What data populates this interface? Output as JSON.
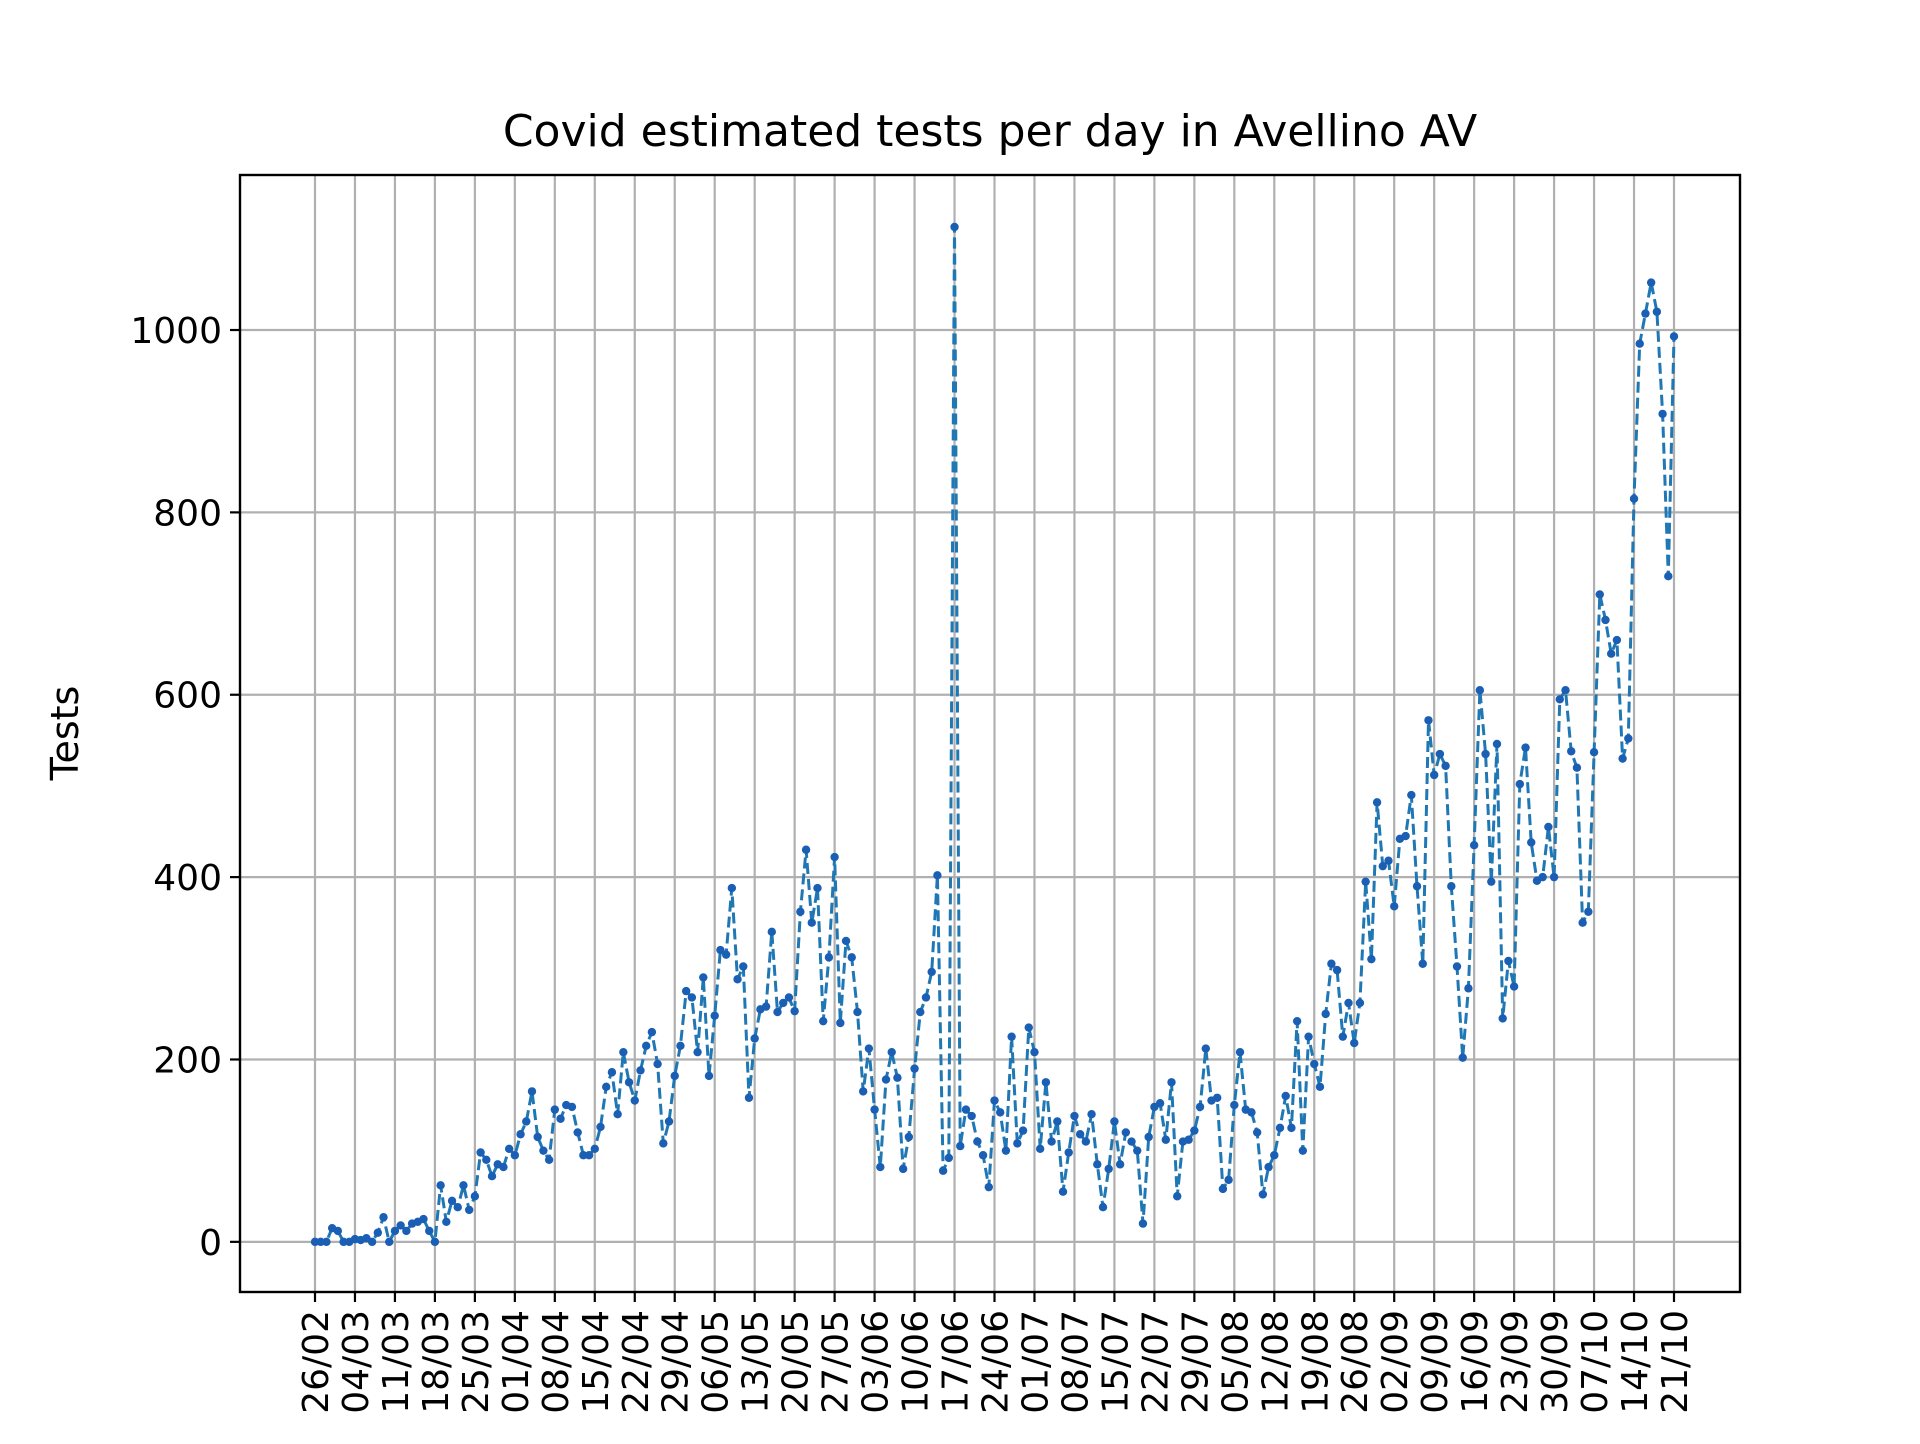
{
  "chart_data": {
    "type": "line",
    "title": "Covid estimated tests per day in Avellino AV",
    "xlabel": "",
    "ylabel": "Tests",
    "ylim": [
      -55,
      1170
    ],
    "yticks": [
      0,
      200,
      400,
      600,
      800,
      1000
    ],
    "ytick_labels": [
      "0",
      "200",
      "400",
      "600",
      "800",
      "1000"
    ],
    "x_start": "26/02",
    "xticks": [
      "26/02",
      "04/03",
      "11/03",
      "18/03",
      "25/03",
      "01/04",
      "08/04",
      "15/04",
      "22/04",
      "29/04",
      "06/05",
      "13/05",
      "20/05",
      "27/05",
      "03/06",
      "10/06",
      "17/06",
      "24/06",
      "01/07",
      "08/07",
      "15/07",
      "22/07",
      "29/07",
      "05/08",
      "12/08",
      "19/08",
      "26/08",
      "02/09",
      "09/09",
      "16/09",
      "23/09",
      "30/09",
      "07/10",
      "14/10",
      "21/10"
    ],
    "grid": true,
    "line_style": "dashed",
    "marker": "dot",
    "color": "#1f77b4",
    "marker_color": "#1a5fb4",
    "series": [
      {
        "values": [
          0,
          0,
          0,
          15,
          12,
          0,
          0,
          3,
          2,
          4,
          0,
          10,
          27,
          0,
          12,
          18,
          12,
          20,
          22,
          25,
          12,
          0,
          62,
          22,
          45,
          38,
          62,
          35,
          50,
          98,
          90,
          72,
          85,
          82,
          102,
          95,
          118,
          132,
          165,
          115,
          100,
          90,
          145,
          135,
          150,
          148,
          120,
          95,
          95,
          102,
          126,
          170,
          186,
          140,
          208,
          175,
          155,
          188,
          215,
          230,
          195,
          108,
          132,
          182,
          215,
          275,
          268,
          208,
          290,
          182,
          248,
          320,
          315,
          388,
          288,
          302,
          158,
          223,
          255,
          258,
          340,
          252,
          262,
          268,
          253,
          362,
          430,
          350,
          388,
          242,
          312,
          422,
          240,
          330,
          312,
          252,
          165,
          212,
          145,
          82,
          178,
          208,
          180,
          80,
          115,
          190,
          252,
          268,
          296,
          402,
          78,
          92,
          1113,
          105,
          145,
          138,
          110,
          95,
          60,
          155,
          142,
          100,
          225,
          108,
          122,
          235,
          208,
          102,
          175,
          110,
          132,
          55,
          98,
          138,
          118,
          110,
          140,
          85,
          38,
          80,
          132,
          85,
          120,
          110,
          100,
          20,
          115,
          148,
          152,
          112,
          175,
          50,
          110,
          112,
          122,
          148,
          212,
          155,
          158,
          58,
          68,
          150,
          208,
          145,
          142,
          120,
          52,
          82,
          95,
          125,
          160,
          125,
          242,
          100,
          225,
          195,
          170,
          250,
          305,
          298,
          225,
          262,
          218,
          262,
          395,
          310,
          482,
          412,
          418,
          368,
          442,
          445,
          490,
          390,
          305,
          572,
          512,
          535,
          522,
          390,
          302,
          202,
          278,
          435,
          605,
          535,
          395,
          546,
          245,
          308,
          280,
          502,
          542,
          438,
          396,
          400,
          455,
          400,
          595,
          605,
          538,
          520,
          350,
          362,
          537,
          710,
          682,
          645,
          660,
          530,
          552,
          815,
          985,
          1018,
          1052,
          1020,
          908,
          730,
          993
        ]
      }
    ]
  }
}
